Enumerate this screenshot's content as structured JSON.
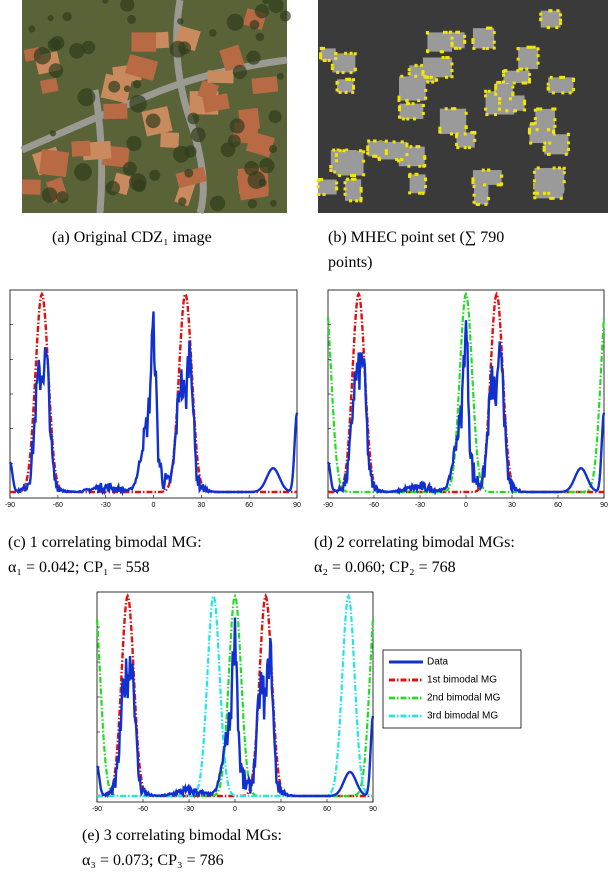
{
  "panels": {
    "a": {
      "caption": [
        "(a) Original CDZ₁ image"
      ]
    },
    "b": {
      "caption": [
        "(b) MHEC point set (∑   790",
        "points)"
      ]
    },
    "c": {
      "xticks": [
        -90,
        -60,
        -30,
        0,
        30,
        60,
        90
      ],
      "caption": [
        "(c) 1 correlating bimodal MG:",
        "α₁ = 0.042; CP₁ = 558"
      ]
    },
    "d": {
      "xticks": [
        -90,
        -60,
        -30,
        0,
        30,
        60,
        90
      ],
      "caption": [
        "(d) 2 correlating bimodal MGs:",
        "α₂ = 0.060; CP₂ = 768"
      ]
    },
    "e": {
      "xticks": [
        -90,
        -60,
        -30,
        0,
        30,
        60,
        90
      ],
      "caption": [
        "(e) 3 correlating bimodal MGs:",
        "α₃ = 0.073; CP₃ = 786"
      ]
    }
  },
  "legend": [
    "Data",
    "1st bimodal MG",
    "2nd bimodal MG",
    "3rd bimodal MG"
  ]
}
